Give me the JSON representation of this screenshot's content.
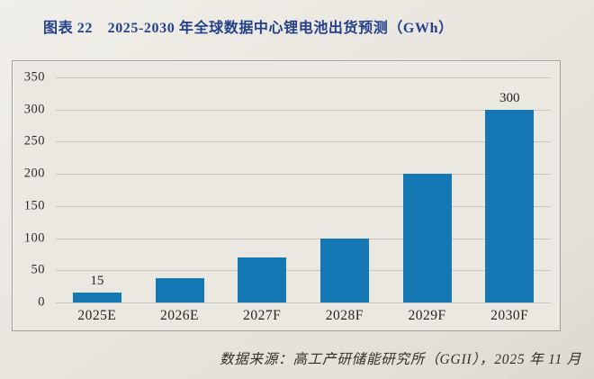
{
  "chart_data": {
    "type": "bar",
    "title": "图表 22　2025-2030 年全球数据中心锂电池出货预测（GWh）",
    "categories": [
      "2025E",
      "2026E",
      "2027F",
      "2028F",
      "2029F",
      "2030F"
    ],
    "values": [
      15,
      38,
      70,
      100,
      200,
      300
    ],
    "shown_data_labels": {
      "0": "15",
      "5": "300"
    },
    "xlabel": "",
    "ylabel": "",
    "ylim": [
      0,
      350
    ],
    "ytick_interval": 50,
    "ytick_labels": [
      "350",
      "300",
      "250",
      "200",
      "150",
      "100",
      "50",
      "0"
    ],
    "grid": true,
    "legend": false,
    "bar_color": "#1577b4",
    "source": "数据来源：高工产研储能研究所（GGII），2025 年 11 月"
  }
}
